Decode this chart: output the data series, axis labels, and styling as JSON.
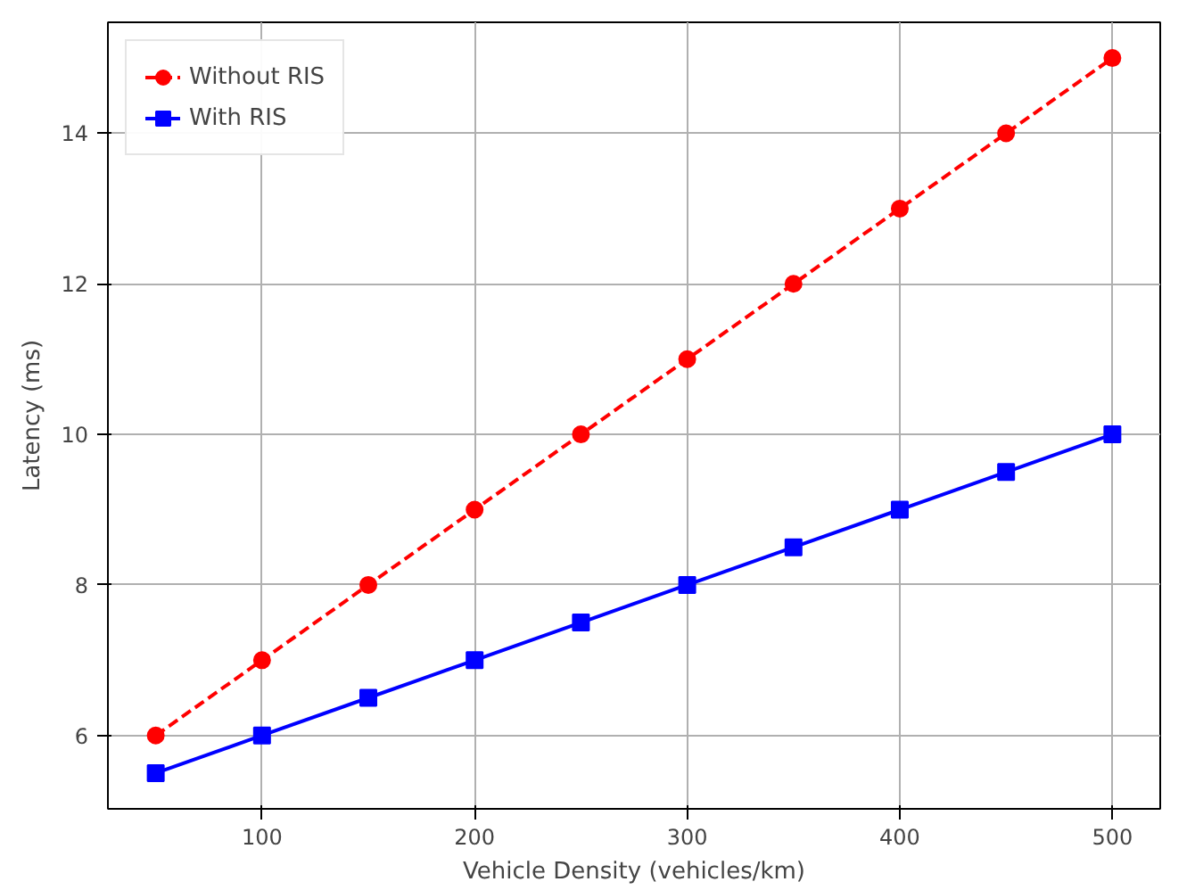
{
  "chart_data": {
    "type": "line",
    "xlabel": "Vehicle Density (vehicles/km)",
    "ylabel": "Latency (ms)",
    "x": [
      50,
      100,
      150,
      200,
      250,
      300,
      350,
      400,
      450,
      500
    ],
    "series": [
      {
        "name": "Without RIS",
        "color": "#ff0000",
        "marker": "circle",
        "line_style": "dashed",
        "values": [
          6,
          7,
          8,
          9,
          10,
          11,
          12,
          13,
          14,
          15
        ]
      },
      {
        "name": "With RIS",
        "color": "#0000ff",
        "marker": "square",
        "line_style": "solid",
        "values": [
          5.5,
          6,
          6.5,
          7,
          7.5,
          8,
          8.5,
          9,
          9.5,
          10
        ]
      }
    ],
    "xlim": [
      27.5,
      522.5
    ],
    "ylim": [
      5.025,
      15.475
    ],
    "xticks": [
      100,
      200,
      300,
      400,
      500
    ],
    "yticks": [
      6,
      8,
      10,
      12,
      14
    ],
    "grid": true,
    "legend": "top left"
  }
}
